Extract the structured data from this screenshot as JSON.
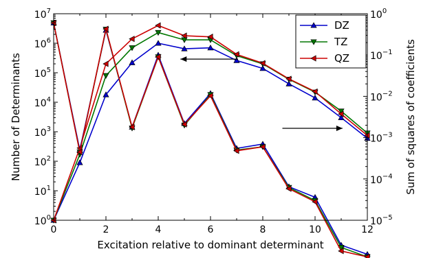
{
  "chart_data": {
    "type": "line",
    "xlabel": "Excitation relative to dominant determinant",
    "ylabel_left": "Number of Determinants",
    "ylabel_right": "Sum of squares of coefficients",
    "xlim": [
      0,
      12
    ],
    "ylim_left": [
      1,
      10000000
    ],
    "ylim_right": [
      1e-05,
      1
    ],
    "yscale": "log",
    "x_ticks": [
      0,
      2,
      4,
      6,
      8,
      10,
      12
    ],
    "y_left_ticks": [
      {
        "base": "10",
        "exp": "0"
      },
      {
        "base": "10",
        "exp": "1"
      },
      {
        "base": "10",
        "exp": "2"
      },
      {
        "base": "10",
        "exp": "3"
      },
      {
        "base": "10",
        "exp": "4"
      },
      {
        "base": "10",
        "exp": "5"
      },
      {
        "base": "10",
        "exp": "6"
      },
      {
        "base": "10",
        "exp": "7"
      }
    ],
    "y_right_ticks": [
      {
        "base": "10",
        "exp": "−5"
      },
      {
        "base": "10",
        "exp": "−4"
      },
      {
        "base": "10",
        "exp": "−3"
      },
      {
        "base": "10",
        "exp": "−2"
      },
      {
        "base": "10",
        "exp": "−1"
      },
      {
        "base": "10",
        "exp": "0"
      }
    ],
    "legend_position": "top-right",
    "x": [
      0,
      1,
      2,
      3,
      4,
      5,
      6,
      7,
      8,
      9,
      10,
      11,
      12
    ],
    "series_determinants": [
      {
        "name": "DZ",
        "axis": "left",
        "color": "#0000cc",
        "marker": "triangle-up",
        "values": [
          1,
          90,
          18000,
          220000,
          1000000,
          650000,
          700000,
          260000,
          140000,
          42000,
          14000,
          3000,
          600
        ]
      },
      {
        "name": "TZ",
        "axis": "left",
        "color": "#007700",
        "marker": "triangle-down",
        "values": [
          1,
          170,
          80000,
          700000,
          2300000,
          1300000,
          1300000,
          380000,
          200000,
          60000,
          22000,
          5000,
          900
        ]
      },
      {
        "name": "QZ",
        "axis": "left",
        "color": "#cc0000",
        "marker": "triangle-left",
        "values": [
          1,
          280,
          200000,
          1400000,
          4000000,
          1800000,
          1650000,
          420000,
          210000,
          62000,
          23000,
          4000,
          750
        ]
      }
    ],
    "series_coefficients": [
      {
        "name": "DZ",
        "axis": "right",
        "color": "#0000cc",
        "marker": "triangle-up",
        "values": [
          0.6,
          0.0005,
          0.4,
          0.0018,
          0.1,
          0.0022,
          0.0118,
          0.00055,
          0.0007,
          6.5e-05,
          3.6e-05,
          2.5e-06,
          1.5e-06
        ]
      },
      {
        "name": "TZ",
        "axis": "right",
        "color": "#007700",
        "marker": "triangle-down",
        "values": [
          0.6,
          0.00045,
          0.42,
          0.0017,
          0.09,
          0.002,
          0.011,
          0.0005,
          0.0006,
          6.2e-05,
          3e-05,
          2.2e-06,
          1.3e-06
        ]
      },
      {
        "name": "QZ",
        "axis": "right",
        "color": "#cc0000",
        "marker": "triangle-left",
        "values": [
          0.6,
          0.00045,
          0.43,
          0.0018,
          0.09,
          0.0021,
          0.0103,
          0.00048,
          0.0006,
          5.8e-05,
          2.8e-05,
          1.8e-06,
          1.3e-06
        ]
      }
    ],
    "annotations": [
      {
        "type": "arrow",
        "direction": "left",
        "meaning": "determinant curves use left axis"
      },
      {
        "type": "arrow",
        "direction": "right",
        "meaning": "coefficient curves use right axis"
      }
    ]
  }
}
